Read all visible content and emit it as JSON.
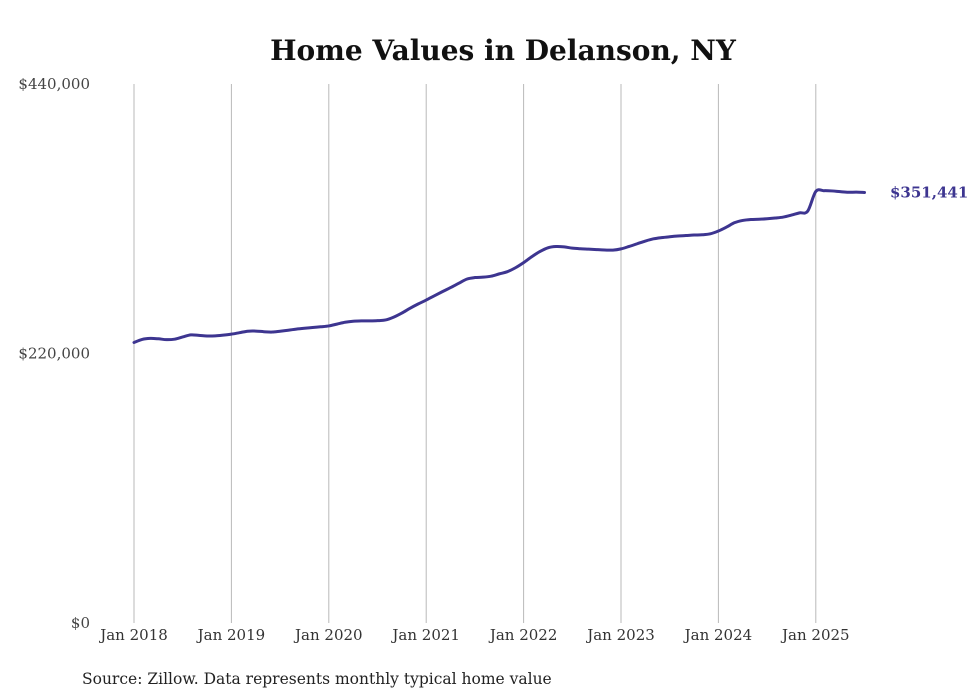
{
  "chart_data": {
    "type": "line",
    "title": "Home Values in Delanson, NY",
    "source": "Source: Zillow. Data represents monthly typical home value",
    "ylim": [
      0,
      440000
    ],
    "y_ticks": [
      {
        "value": 0,
        "label": "$0"
      },
      {
        "value": 220000,
        "label": "$220,000"
      },
      {
        "value": 440000,
        "label": "$440,000"
      }
    ],
    "x_ticks": [
      {
        "value": "2018-01",
        "label": "Jan 2018"
      },
      {
        "value": "2019-01",
        "label": "Jan 2019"
      },
      {
        "value": "2020-01",
        "label": "Jan 2020"
      },
      {
        "value": "2021-01",
        "label": "Jan 2021"
      },
      {
        "value": "2022-01",
        "label": "Jan 2022"
      },
      {
        "value": "2023-01",
        "label": "Jan 2023"
      },
      {
        "value": "2024-01",
        "label": "Jan 2024"
      },
      {
        "value": "2025-01",
        "label": "Jan 2025"
      }
    ],
    "grid": {
      "vertical": true,
      "horizontal": false
    },
    "line_color": "#3d3590",
    "end_label": "$351,441",
    "series": [
      {
        "points": [
          [
            "2018-01",
            229000
          ],
          [
            "2018-02",
            231500
          ],
          [
            "2018-03",
            232300
          ],
          [
            "2018-04",
            232000
          ],
          [
            "2018-05",
            231300
          ],
          [
            "2018-06",
            231700
          ],
          [
            "2018-07",
            233500
          ],
          [
            "2018-08",
            235200
          ],
          [
            "2018-09",
            234800
          ],
          [
            "2018-10",
            234300
          ],
          [
            "2018-11",
            234400
          ],
          [
            "2018-12",
            235000
          ],
          [
            "2019-01",
            235800
          ],
          [
            "2019-02",
            237000
          ],
          [
            "2019-03",
            238200
          ],
          [
            "2019-04",
            238300
          ],
          [
            "2019-05",
            237800
          ],
          [
            "2019-06",
            237500
          ],
          [
            "2019-07",
            238200
          ],
          [
            "2019-08",
            239000
          ],
          [
            "2019-09",
            239900
          ],
          [
            "2019-10",
            240600
          ],
          [
            "2019-11",
            241200
          ],
          [
            "2019-12",
            241800
          ],
          [
            "2020-01",
            242500
          ],
          [
            "2020-02",
            244000
          ],
          [
            "2020-03",
            245500
          ],
          [
            "2020-04",
            246300
          ],
          [
            "2020-05",
            246600
          ],
          [
            "2020-06",
            246600
          ],
          [
            "2020-07",
            246800
          ],
          [
            "2020-08",
            247400
          ],
          [
            "2020-09",
            249700
          ],
          [
            "2020-10",
            253000
          ],
          [
            "2020-11",
            256900
          ],
          [
            "2020-12",
            260400
          ],
          [
            "2021-01",
            263600
          ],
          [
            "2021-02",
            267100
          ],
          [
            "2021-03",
            270500
          ],
          [
            "2021-04",
            273800
          ],
          [
            "2021-05",
            277300
          ],
          [
            "2021-06",
            280700
          ],
          [
            "2021-07",
            282000
          ],
          [
            "2021-08",
            282300
          ],
          [
            "2021-09",
            283100
          ],
          [
            "2021-10",
            285000
          ],
          [
            "2021-11",
            286800
          ],
          [
            "2021-12",
            290000
          ],
          [
            "2022-01",
            294200
          ],
          [
            "2022-02",
            299000
          ],
          [
            "2022-03",
            303200
          ],
          [
            "2022-04",
            306300
          ],
          [
            "2022-05",
            307300
          ],
          [
            "2022-06",
            307000
          ],
          [
            "2022-07",
            306000
          ],
          [
            "2022-08",
            305500
          ],
          [
            "2022-09",
            305200
          ],
          [
            "2022-10",
            304800
          ],
          [
            "2022-11",
            304500
          ],
          [
            "2022-12",
            304400
          ],
          [
            "2023-01",
            305400
          ],
          [
            "2023-02",
            307400
          ],
          [
            "2023-03",
            309600
          ],
          [
            "2023-04",
            311800
          ],
          [
            "2023-05",
            313600
          ],
          [
            "2023-06",
            314600
          ],
          [
            "2023-07",
            315300
          ],
          [
            "2023-08",
            315900
          ],
          [
            "2023-09",
            316300
          ],
          [
            "2023-10",
            316700
          ],
          [
            "2023-11",
            316900
          ],
          [
            "2023-12",
            317700
          ],
          [
            "2024-01",
            320000
          ],
          [
            "2024-02",
            323200
          ],
          [
            "2024-03",
            326800
          ],
          [
            "2024-04",
            328600
          ],
          [
            "2024-05",
            329400
          ],
          [
            "2024-06",
            329600
          ],
          [
            "2024-07",
            330000
          ],
          [
            "2024-08",
            330600
          ],
          [
            "2024-09",
            331400
          ],
          [
            "2024-10",
            333000
          ],
          [
            "2024-11",
            334800
          ],
          [
            "2024-12",
            336200
          ],
          [
            "2025-01",
            352300
          ],
          [
            "2025-02",
            352900
          ],
          [
            "2025-03",
            352700
          ],
          [
            "2025-04",
            352100
          ],
          [
            "2025-05",
            351600
          ],
          [
            "2025-06",
            351700
          ],
          [
            "2025-07",
            351441
          ]
        ]
      }
    ]
  }
}
